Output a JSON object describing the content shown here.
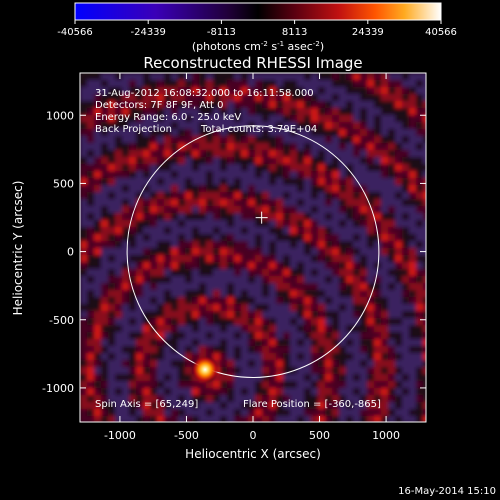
{
  "colorbar": {
    "ticks": [
      -40566,
      -24339,
      -8113,
      8113,
      24339,
      40566
    ],
    "tick_labels": [
      "-40566",
      "-24339",
      "-8113",
      "8113",
      "24339",
      "40566"
    ],
    "unit_label": "(photons cm",
    "unit_exp1": "-2",
    "unit_mid": " s",
    "unit_exp2": "-1",
    "unit_tail": " asec",
    "unit_exp3": "-2",
    "unit_close": ")"
  },
  "chart_data": {
    "type": "heatmap",
    "title": "Reconstructed RHESSI Image",
    "xlabel": "Heliocentric X (arcsec)",
    "ylabel": "Heliocentric Y (arcsec)",
    "xlim": [
      -1300,
      1300
    ],
    "ylim": [
      -1250,
      1310
    ],
    "xticks": [
      -1000,
      -500,
      0,
      500,
      1000
    ],
    "yticks": [
      -1000,
      -500,
      0,
      500,
      1000
    ],
    "xtick_labels": [
      "-1000",
      "-500",
      "0",
      "500",
      "1000"
    ],
    "ytick_labels": [
      "-1000",
      "-500",
      "0",
      "500",
      "1000"
    ],
    "value_range": [
      -40566,
      40566
    ],
    "colormap": "blue-black-red-yellow-white",
    "annotations": {
      "time": "31-Aug-2012 16:08:32.000 to 16:11:58.000",
      "detectors": "Detectors: 7F 8F 9F, Att 0",
      "energy": "Energy Range: 6.0 - 25.0 keV",
      "method": "Back Projection",
      "counts": "Total counts: 3.79E+04",
      "spin_axis": "Spin Axis = [65,249]",
      "flare_position": "Flare Position = [-360,-865]"
    },
    "solar_disk": {
      "center": [
        0,
        0
      ],
      "radius": 946
    },
    "sun_center_marker": [
      65,
      249
    ],
    "flare_source": {
      "x": -360,
      "y": -865
    }
  },
  "footer": {
    "date": "16-May-2014 15:10"
  }
}
